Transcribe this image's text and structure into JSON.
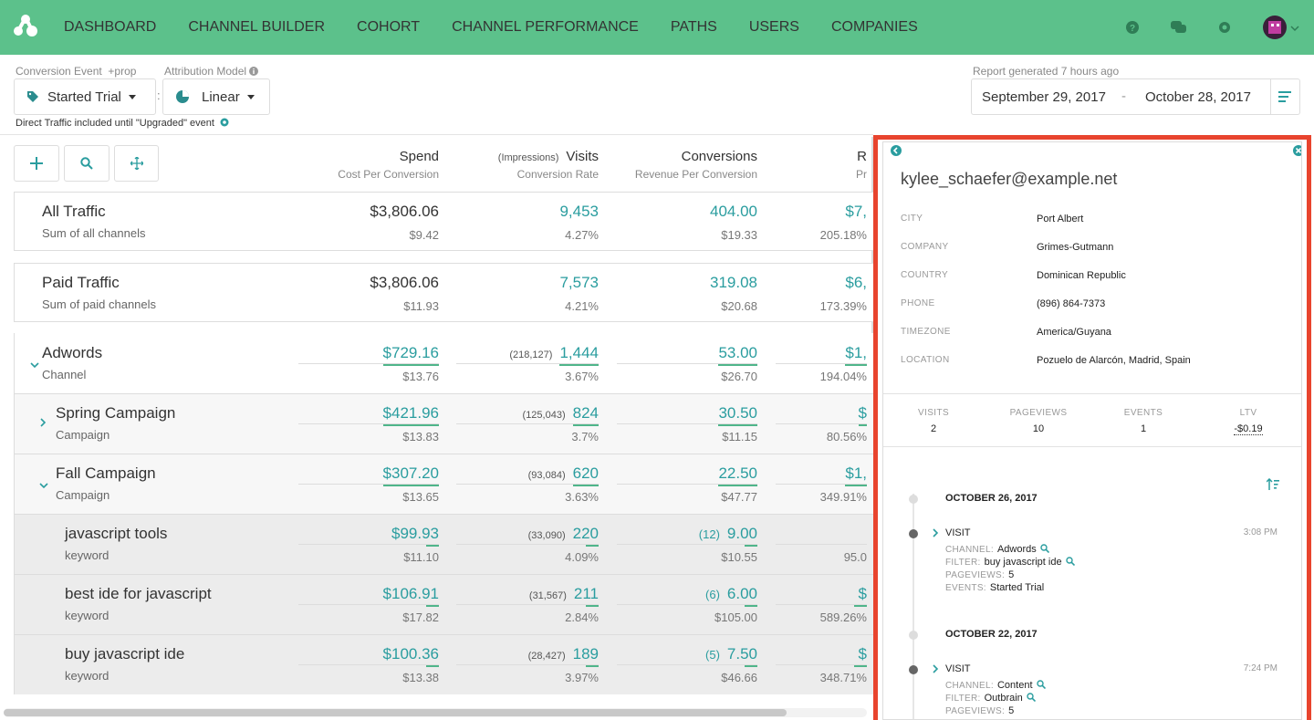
{
  "nav": {
    "items": [
      "DASHBOARD",
      "CHANNEL BUILDER",
      "COHORT",
      "CHANNEL PERFORMANCE",
      "PATHS",
      "USERS",
      "COMPANIES"
    ]
  },
  "controls": {
    "conversion_event_label": "Conversion Event",
    "prop": "+prop",
    "attribution_label": "Attribution Model",
    "event": "Started Trial",
    "separator": ":",
    "model": "Linear",
    "note": "Direct Traffic included until \"Upgraded\" event",
    "report": "Report generated 7 hours ago",
    "date_start": "September 29, 2017",
    "date_separator": "-",
    "date_end": "October 28, 2017"
  },
  "table": {
    "columns": [
      {
        "title": "Spend",
        "sub": "Cost Per Conversion"
      },
      {
        "pre": "(Impressions)",
        "title": "Visits",
        "sub": "Conversion Rate"
      },
      {
        "title": "Conversions",
        "sub": "Revenue Per Conversion"
      },
      {
        "title": "R",
        "sub": "Pr"
      }
    ],
    "rows": [
      {
        "name": "All Traffic",
        "sub": "Sum of all channels",
        "spend": "$3,806.06",
        "cpc": "$9.42",
        "visits": "9,453",
        "rate": "4.27%",
        "conversions": "404.00",
        "rpc": "$19.33",
        "r": "$7,",
        "r_pct": "205.18%"
      },
      {
        "name": "Paid Traffic",
        "sub": "Sum of paid channels",
        "spend": "$3,806.06",
        "cpc": "$11.93",
        "visits": "7,573",
        "rate": "4.21%",
        "conversions": "319.08",
        "rpc": "$20.68",
        "r": "$6,",
        "r_pct": "173.39%"
      },
      {
        "name": "Adwords",
        "sub": "Channel",
        "spend": "$729.16",
        "cpc": "$13.76",
        "impressions": "(218,127)",
        "visits": "1,444",
        "rate": "3.67%",
        "conversions": "53.00",
        "rpc": "$26.70",
        "r": "$1,",
        "r_pct": "194.04%"
      },
      {
        "name": "Spring Campaign",
        "sub": "Campaign",
        "spend": "$421.96",
        "cpc": "$13.83",
        "impressions": "(125,043)",
        "visits": "824",
        "rate": "3.7%",
        "conversions": "30.50",
        "rpc": "$11.15",
        "r": "$",
        "r_pct": "80.56%"
      },
      {
        "name": "Fall Campaign",
        "sub": "Campaign",
        "spend": "$307.20",
        "cpc": "$13.65",
        "impressions": "(93,084)",
        "visits": "620",
        "rate": "3.63%",
        "conversions": "22.50",
        "rpc": "$47.77",
        "r": "$1,",
        "r_pct": "349.91%"
      },
      {
        "name": "javascript tools",
        "sub": "keyword",
        "spend": "$99.93",
        "cpc": "$11.10",
        "impressions": "(33,090)",
        "visits": "220",
        "rate": "4.09%",
        "conv_count": "(12)",
        "conversions": "9.00",
        "rpc": "$10.55",
        "r_pct": "95.0"
      },
      {
        "name": "best ide for javascript",
        "sub": "keyword",
        "spend": "$106.91",
        "cpc": "$17.82",
        "impressions": "(31,567)",
        "visits": "211",
        "rate": "2.84%",
        "conv_count": "(6)",
        "conversions": "6.00",
        "rpc": "$105.00",
        "r": "$",
        "r_pct": "589.26%"
      },
      {
        "name": "buy javascript ide",
        "sub": "keyword",
        "spend": "$100.36",
        "cpc": "$13.38",
        "impressions": "(28,427)",
        "visits": "189",
        "rate": "3.97%",
        "conv_count": "(5)",
        "conversions": "7.50",
        "rpc": "$46.66",
        "r": "$",
        "r_pct": "348.71%"
      }
    ]
  },
  "panel": {
    "email": "kylee_schaefer@example.net",
    "fields": [
      {
        "label": "CITY",
        "value": "Port Albert"
      },
      {
        "label": "COMPANY",
        "value": "Grimes-Gutmann"
      },
      {
        "label": "COUNTRY",
        "value": "Dominican Republic"
      },
      {
        "label": "PHONE",
        "value": "(896) 864-7373"
      },
      {
        "label": "TIMEZONE",
        "value": "America/Guyana"
      },
      {
        "label": "LOCATION",
        "value": "Pozuelo de Alarcón, Madrid, Spain"
      }
    ],
    "stats": [
      {
        "label": "VISITS",
        "value": "2"
      },
      {
        "label": "PAGEVIEWS",
        "value": "10"
      },
      {
        "label": "EVENTS",
        "value": "1"
      },
      {
        "label": "LTV",
        "value": "-$0.19"
      }
    ],
    "timeline": [
      {
        "date": "OCTOBER 26, 2017",
        "type": "VISIT",
        "time": "3:08 PM",
        "details": [
          {
            "key": "CHANNEL:",
            "value": "Adwords",
            "search": true
          },
          {
            "key": "FILTER:",
            "value": "buy javascript ide",
            "search": true
          },
          {
            "key": "PAGEVIEWS:",
            "value": "5"
          },
          {
            "key": "EVENTS:",
            "value": "Started Trial"
          }
        ]
      },
      {
        "date": "OCTOBER 22, 2017",
        "type": "VISIT",
        "time": "7:24 PM",
        "details": [
          {
            "key": "CHANNEL:",
            "value": "Content",
            "search": true
          },
          {
            "key": "FILTER:",
            "value": "Outbrain",
            "search": true
          },
          {
            "key": "PAGEVIEWS:",
            "value": "5"
          }
        ]
      }
    ]
  }
}
